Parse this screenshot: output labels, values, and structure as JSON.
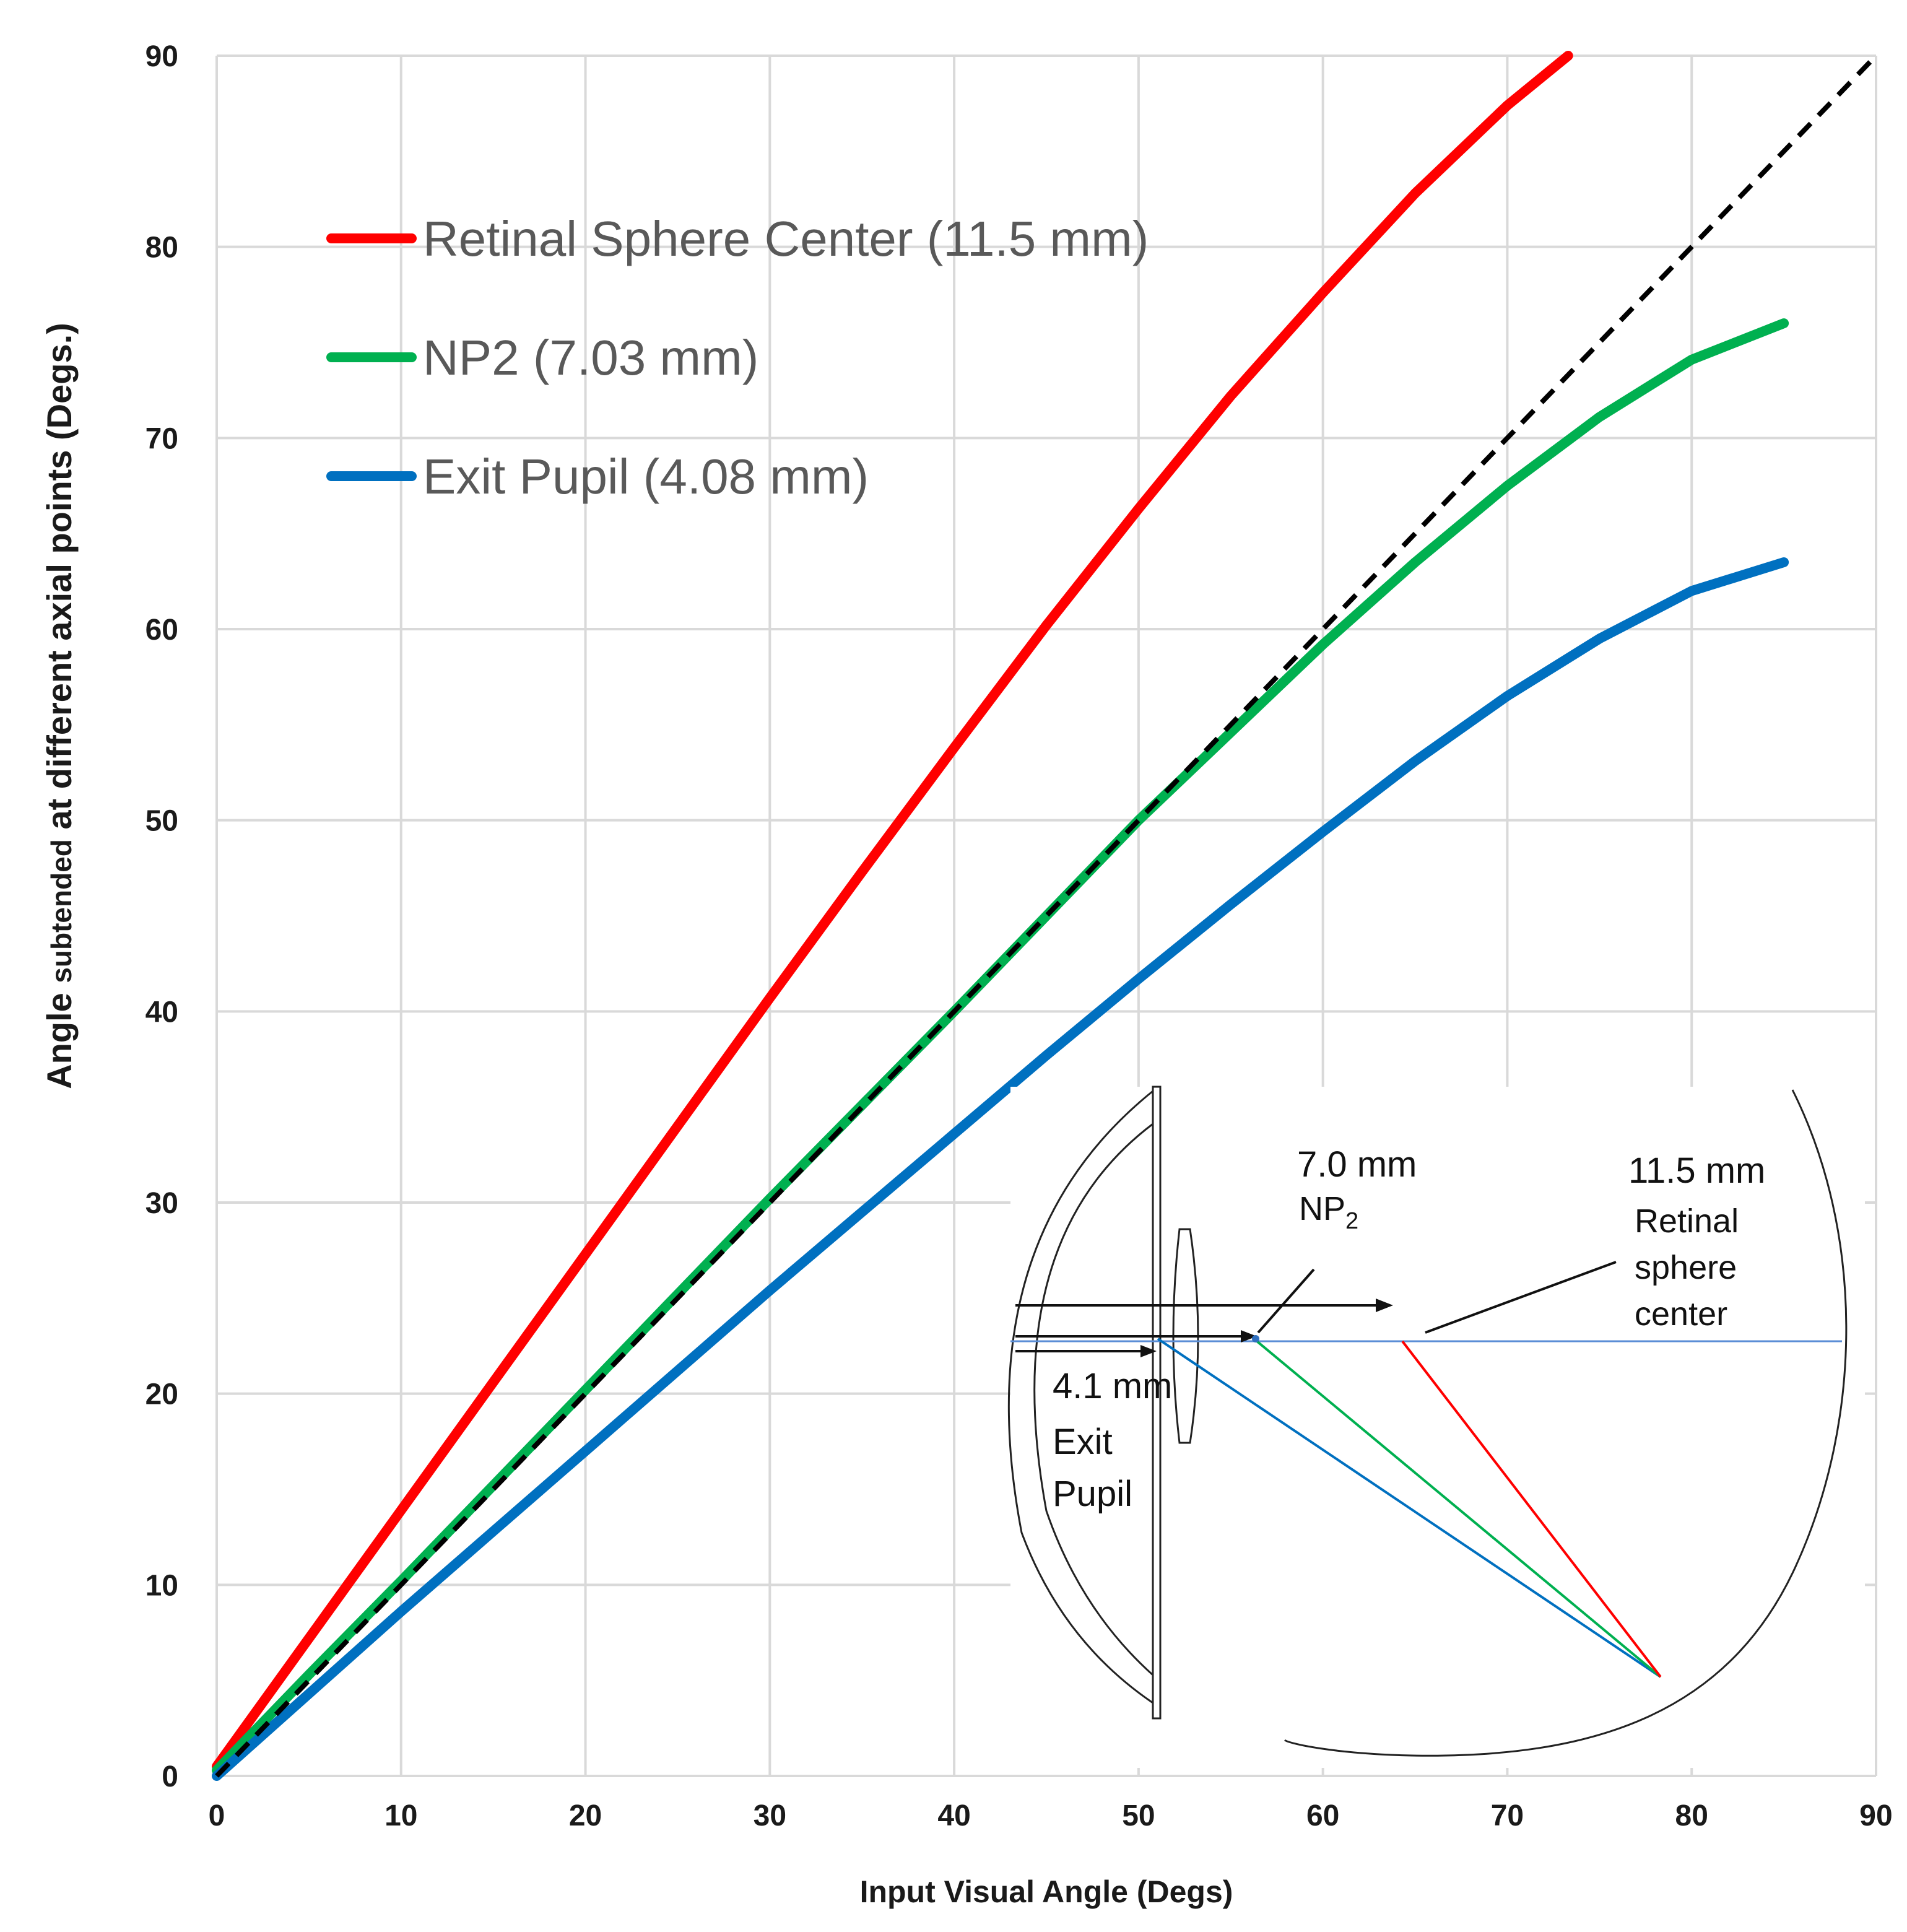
{
  "chart_data": {
    "type": "line",
    "xlabel": "Input Visual Angle (Degs)",
    "ylabel": {
      "part1": "Angle ",
      "part2": "subtended",
      "part3": " at different axial points (Degs.)"
    },
    "xlim": [
      0,
      90
    ],
    "ylim": [
      0,
      90
    ],
    "x_ticks": [
      "0",
      "10",
      "20",
      "30",
      "40",
      "50",
      "60",
      "70",
      "80",
      "90"
    ],
    "y_ticks": [
      "0",
      "10",
      "20",
      "30",
      "40",
      "50",
      "60",
      "70",
      "80",
      "90"
    ],
    "grid": true,
    "legend_position": "top-left",
    "series": [
      {
        "name": "Retinal Sphere Center (11.5 mm)",
        "color": "#ff0000",
        "x": [
          0,
          5,
          10,
          15,
          20,
          25,
          30,
          35,
          40,
          45,
          50,
          55,
          60,
          65,
          70,
          73.3
        ],
        "y": [
          0.5,
          7.2,
          13.9,
          20.6,
          27.3,
          34.0,
          40.7,
          47.3,
          53.8,
          60.2,
          66.3,
          72.2,
          77.6,
          82.8,
          87.4,
          90
        ]
      },
      {
        "name": "NP2 (7.03 mm)",
        "color": "#00b050",
        "x": [
          0,
          5,
          10,
          15,
          20,
          25,
          30,
          35,
          40,
          45,
          50,
          55,
          60,
          65,
          70,
          75,
          80,
          85
        ],
        "y": [
          0.3,
          5.3,
          10.2,
          15.2,
          20.2,
          25.2,
          30.2,
          35.1,
          40.0,
          45.0,
          50.0,
          54.6,
          59.2,
          63.5,
          67.5,
          71.1,
          74.1,
          76.0
        ]
      },
      {
        "name": "Exit Pupil (4.08 mm)",
        "color": "#0070c0",
        "x": [
          0,
          5,
          10,
          15,
          20,
          25,
          30,
          35,
          40,
          45,
          50,
          55,
          60,
          65,
          70,
          75,
          80,
          85
        ],
        "y": [
          0,
          4.3,
          8.6,
          12.8,
          17.0,
          21.2,
          25.4,
          29.5,
          33.6,
          37.7,
          41.7,
          45.6,
          49.4,
          53.1,
          56.5,
          59.5,
          62.0,
          63.5
        ]
      },
      {
        "color": "#000000",
        "dashed": true,
        "x": [
          0,
          90
        ],
        "y": [
          0,
          90
        ]
      }
    ]
  },
  "inset": {
    "np2_distance": "7.0 mm",
    "np2_label": "NP",
    "np2_subscript": "2",
    "retina_distance": "11.5 mm",
    "retina_label_lines": [
      "Retinal",
      "sphere",
      "center"
    ],
    "exit_distance": "4.1 mm",
    "exit_label_lines": [
      "Exit",
      "Pupil"
    ],
    "colors": {
      "axis": "#5b8ed6",
      "exit_ray": "#0070c0",
      "np2_ray": "#00b050",
      "retina_ray": "#ff0000",
      "outline": "#222222"
    }
  }
}
